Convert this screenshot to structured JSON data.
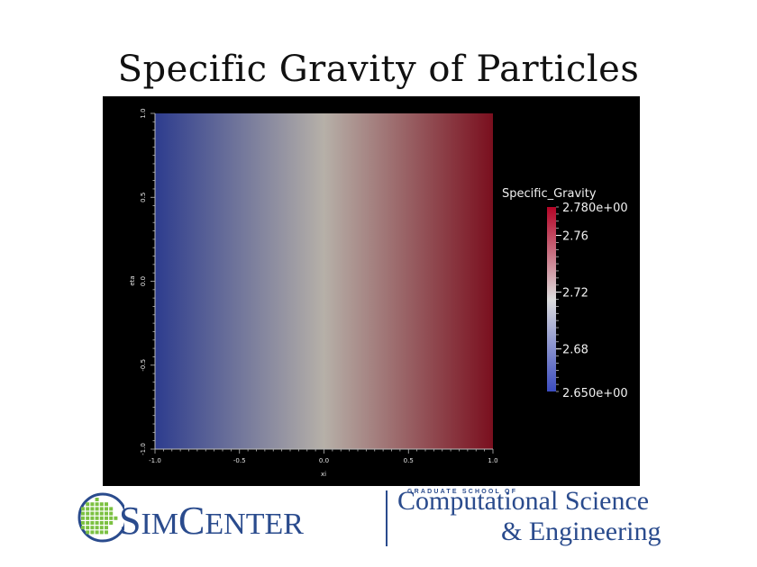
{
  "slide": {
    "title": "Specific Gravity of Particles"
  },
  "chart_data": {
    "type": "heatmap",
    "title": "",
    "xlabel": "xi",
    "ylabel": "eta",
    "xlim": [
      -1.0,
      1.0
    ],
    "ylim": [
      -1.0,
      1.0
    ],
    "x_ticks": [
      "-1.0",
      "-0.5",
      "0.0",
      "0.5",
      "1.0"
    ],
    "y_ticks": [
      "-1.0",
      "-0.5",
      "0.0",
      "0.5",
      "1.0"
    ],
    "field": "Specific_Gravity",
    "field_varies_along": "xi",
    "field_at_x": [
      {
        "x": -1.0,
        "value": 2.65
      },
      {
        "x": 0.0,
        "value": 2.715
      },
      {
        "x": 1.0,
        "value": 2.78
      }
    ],
    "colorbar": {
      "title": "Specific_Gravity",
      "min": 2.65,
      "max": 2.78,
      "min_label": "2.650e+00",
      "max_label": "2.780e+00",
      "tick_values": [
        2.68,
        2.72,
        2.76
      ],
      "tick_labels": [
        "2.68",
        "2.72",
        "2.76"
      ],
      "colormap": [
        "#3b4cc0",
        "#dddddd",
        "#b40426"
      ]
    },
    "background": "#000000"
  },
  "logo": {
    "simcenter_first": "S",
    "simcenter_mid": "IM",
    "simcenter_c": "C",
    "simcenter_rest": "ENTER",
    "graduate_school": "GRADUATE SCHOOL OF",
    "line1": "Computational Science",
    "line2": "& Engineering",
    "brand_color": "#2a4b8d",
    "globe_color": "#7cc142"
  }
}
